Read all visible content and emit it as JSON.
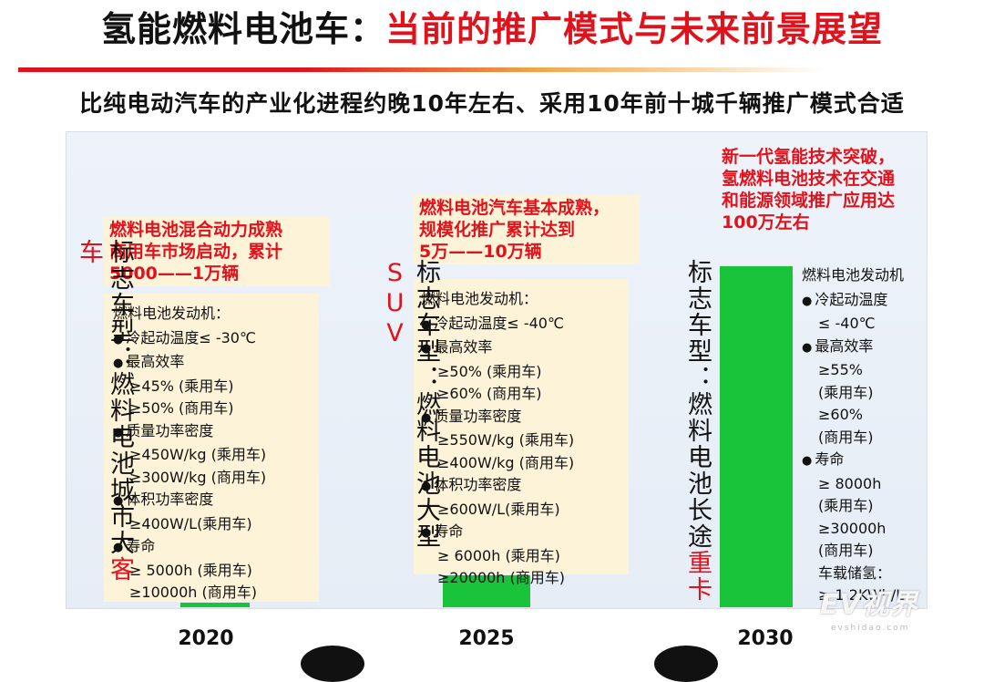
{
  "title": {
    "main": "氢能燃料电池车：",
    "accent": "当前的推广模式与未来前景展望"
  },
  "subtitle": "比纯电动汽车的产业化进程约晚10年左右、采用10年前十城千辆推广模式合适",
  "stages": [
    {
      "year": "2020",
      "callout": [
        "燃料电池混合动力成熟",
        "商用车市场启动，累计",
        "5000——1万辆"
      ],
      "vehicle_prefix": "标志车型：燃料电池城市大",
      "vehicle_suffix": "客车",
      "specs_title": "燃料电池发动机：",
      "specs": [
        {
          "bullet": true,
          "text": "冷起动温度≤ -30℃"
        },
        {
          "bullet": true,
          "text": "最高效率"
        },
        {
          "bullet": false,
          "text": "≥45% (乘用车)"
        },
        {
          "bullet": false,
          "text": "≥50% (商用车)"
        },
        {
          "bullet": true,
          "text": "质量功率密度"
        },
        {
          "bullet": false,
          "text": "≥450W/kg (乘用车)"
        },
        {
          "bullet": false,
          "text": "≥300W/kg (商用车)"
        },
        {
          "bullet": true,
          "text": "体积功率密度"
        },
        {
          "bullet": false,
          "text": "≥400W/L(乘用车)"
        },
        {
          "bullet": true,
          "text": "寿命"
        },
        {
          "bullet": false,
          "text": "≥ 5000h  (乘用车)"
        },
        {
          "bullet": false,
          "text": "≥10000h (商用车)"
        }
      ]
    },
    {
      "year": "2025",
      "callout": [
        "燃料电池汽车基本成熟，",
        "规模化推广累计达到",
        "5万——10万辆"
      ],
      "vehicle_prefix": "标志车型：燃料电池大型",
      "vehicle_suffix": "SUV",
      "specs_title": "燃料电池发动机：",
      "specs": [
        {
          "bullet": true,
          "text": "冷起动温度≤ -40℃"
        },
        {
          "bullet": true,
          "text": "最高效率"
        },
        {
          "bullet": false,
          "text": "≥50% (乘用车)"
        },
        {
          "bullet": false,
          "text": "≥60% (商用车)"
        },
        {
          "bullet": true,
          "text": "质量功率密度"
        },
        {
          "bullet": false,
          "text": "≥550W/kg (乘用车)"
        },
        {
          "bullet": false,
          "text": "≥400W/kg (商用车)"
        },
        {
          "bullet": true,
          "text": "体积功率密度"
        },
        {
          "bullet": false,
          "text": "≥600W/L(乘用车)"
        },
        {
          "bullet": true,
          "text": "寿命"
        },
        {
          "bullet": false,
          "text": "≥ 6000h  (乘用车)"
        },
        {
          "bullet": false,
          "text": "≥20000h (商用车)"
        }
      ]
    },
    {
      "year": "2030",
      "callout": [
        "新一代氢能技术突破，",
        "氢燃料电池技术在交通",
        "和能源领域推广应用达",
        "100万左右"
      ],
      "vehicle_prefix": "标志车型：燃料电池长途",
      "vehicle_suffix": "重卡",
      "specs_title": "燃料电池发动机",
      "specs": [
        {
          "bullet": true,
          "text": "冷起动温度"
        },
        {
          "bullet": false,
          "text": "≤ -40℃"
        },
        {
          "bullet": true,
          "text": "最高效率"
        },
        {
          "bullet": false,
          "text": "≥55%"
        },
        {
          "bullet": false,
          "text": "(乘用车)"
        },
        {
          "bullet": false,
          "text": "≥60%"
        },
        {
          "bullet": false,
          "text": "(商用车)"
        },
        {
          "bullet": true,
          "text": "寿命"
        },
        {
          "bullet": false,
          "text": "≥ 8000h"
        },
        {
          "bullet": false,
          "text": "(乘用车)"
        },
        {
          "bullet": false,
          "text": "≥30000h"
        },
        {
          "bullet": false,
          "text": "(商用车)"
        },
        {
          "bullet": false,
          "text": "车载储氢："
        },
        {
          "bullet": false,
          "text": "≥ 1.2KWh/L"
        }
      ]
    }
  ],
  "watermark": {
    "logo": "EV视界",
    "sub": "evshidao.com"
  },
  "colors": {
    "accent_red": "#e0131c",
    "bar_green": "#19c43a",
    "callout_bg": "#fdf3d8"
  }
}
